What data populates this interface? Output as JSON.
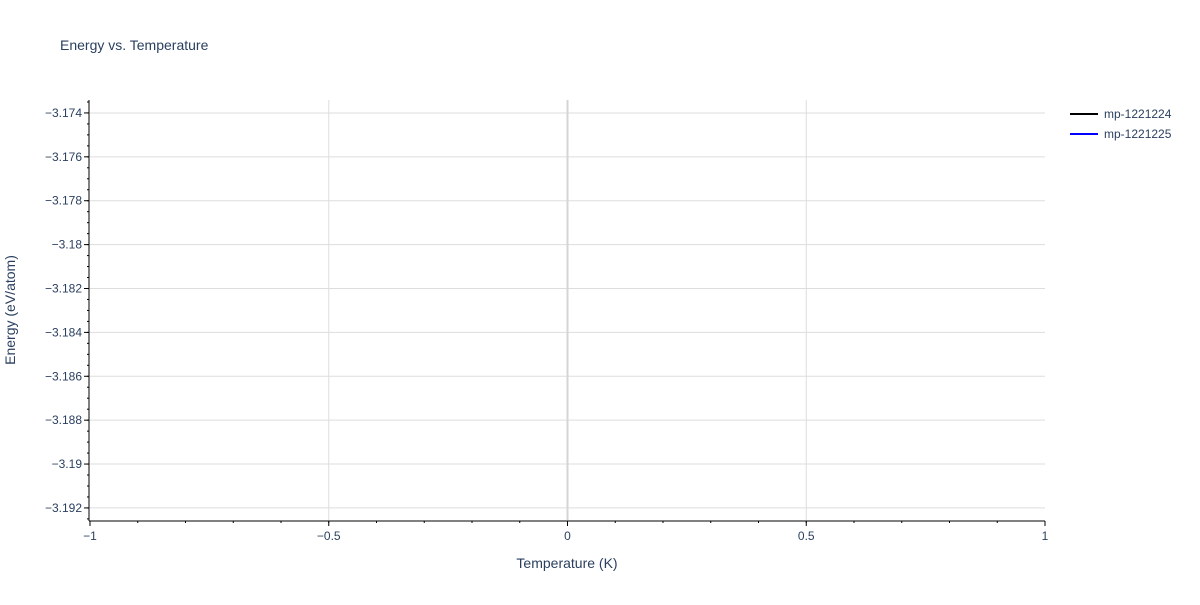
{
  "chart_data": {
    "type": "line",
    "title": "Energy vs. Temperature",
    "xlabel": "Temperature (K)",
    "ylabel": "Energy (eV/atom)",
    "xlim": [
      -1,
      1
    ],
    "ylim": [
      -3.19255,
      -3.17341
    ],
    "x_ticks": [
      -1,
      -0.5,
      0,
      0.5,
      1
    ],
    "x_tick_labels": [
      "−1",
      "−0.5",
      "0",
      "0.5",
      "1"
    ],
    "y_ticks": [
      -3.174,
      -3.176,
      -3.178,
      -3.18,
      -3.182,
      -3.184,
      -3.186,
      -3.188,
      -3.19,
      -3.192
    ],
    "y_tick_labels": [
      "−3.174",
      "−3.176",
      "−3.178",
      "−3.18",
      "−3.182",
      "−3.184",
      "−3.186",
      "−3.188",
      "−3.19",
      "−3.192"
    ],
    "grid": true,
    "legend_placement": "top-right",
    "series": [
      {
        "name": "mp-1221224",
        "color": "#000000",
        "x": [],
        "y": []
      },
      {
        "name": "mp-1221225",
        "color": "#0000ff",
        "x": [],
        "y": []
      }
    ]
  }
}
